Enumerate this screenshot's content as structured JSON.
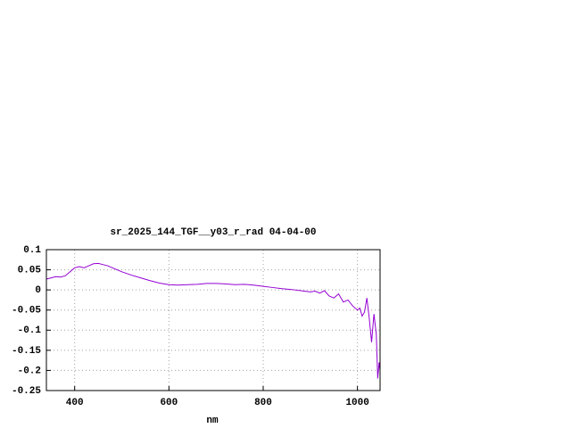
{
  "chart_data": {
    "type": "line",
    "title": "sr_2025_144_TGF__y03_r_rad 04-04-00",
    "x_label": "nm",
    "x": [
      340,
      350,
      360,
      370,
      380,
      390,
      400,
      410,
      420,
      430,
      440,
      450,
      460,
      470,
      480,
      490,
      500,
      520,
      540,
      560,
      580,
      600,
      620,
      640,
      660,
      680,
      700,
      720,
      740,
      760,
      780,
      800,
      820,
      840,
      860,
      880,
      900,
      910,
      920,
      930,
      940,
      950,
      960,
      970,
      980,
      990,
      1000,
      1005,
      1010,
      1015,
      1020,
      1025,
      1030,
      1035,
      1040,
      1043,
      1046,
      1048
    ],
    "series": [
      {
        "color": "#9400d3",
        "values": [
          0.027,
          0.03,
          0.033,
          0.032,
          0.035,
          0.045,
          0.055,
          0.058,
          0.055,
          0.06,
          0.065,
          0.066,
          0.063,
          0.06,
          0.055,
          0.05,
          0.045,
          0.037,
          0.03,
          0.023,
          0.017,
          0.013,
          0.012,
          0.013,
          0.014,
          0.016,
          0.016,
          0.015,
          0.013,
          0.014,
          0.012,
          0.009,
          0.006,
          0.003,
          0.001,
          -0.002,
          -0.005,
          -0.003,
          -0.008,
          -0.002,
          -0.015,
          -0.02,
          -0.01,
          -0.03,
          -0.025,
          -0.04,
          -0.05,
          -0.045,
          -0.065,
          -0.055,
          -0.02,
          -0.07,
          -0.13,
          -0.06,
          -0.11,
          -0.22,
          -0.18,
          -0.2
        ]
      }
    ],
    "xlim": [
      340,
      1048
    ],
    "ylim": [
      -0.25,
      0.1
    ],
    "xticks": [
      400,
      600,
      800,
      1000
    ],
    "yticks": [
      -0.25,
      -0.2,
      -0.15,
      -0.1,
      -0.05,
      0,
      0.05,
      0.1
    ],
    "grid": true
  }
}
